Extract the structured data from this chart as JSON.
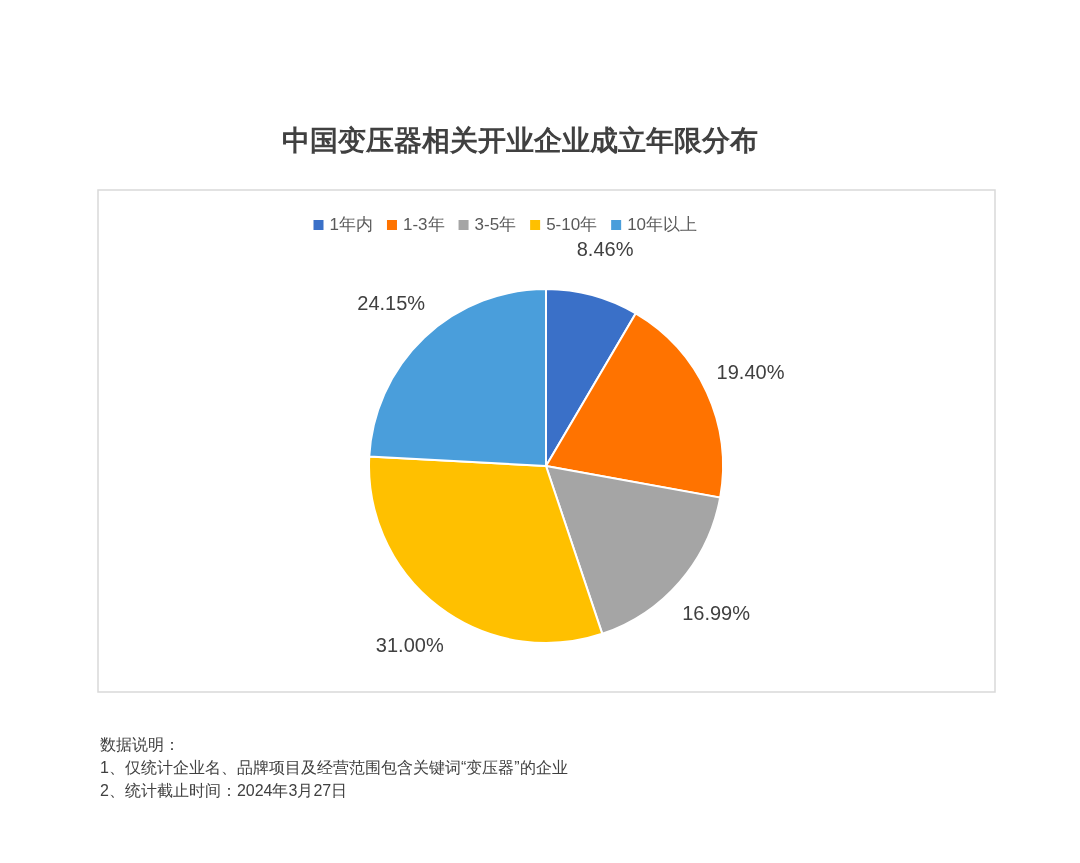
{
  "chart_data": {
    "type": "pie",
    "title": "中国变压器相关开业企业成立年限分布",
    "categories": [
      "1年内",
      "1-3年",
      "3-5年",
      "5-10年",
      "10年以上"
    ],
    "values": [
      8.46,
      19.4,
      16.99,
      31.0,
      24.15
    ],
    "value_labels": [
      "8.46%",
      "19.40%",
      "16.99%",
      "31.00%",
      "24.15%"
    ],
    "colors": [
      "#3a70c8",
      "#ff7300",
      "#a5a5a5",
      "#ffc000",
      "#4a9edb"
    ],
    "legend": "top",
    "annotations": [
      "数据说明：",
      "1、仅统计企业名、品牌项目及经营范围包含关键词“变压器”的企业",
      "2、统计截止时间：2024年3月27日"
    ]
  }
}
